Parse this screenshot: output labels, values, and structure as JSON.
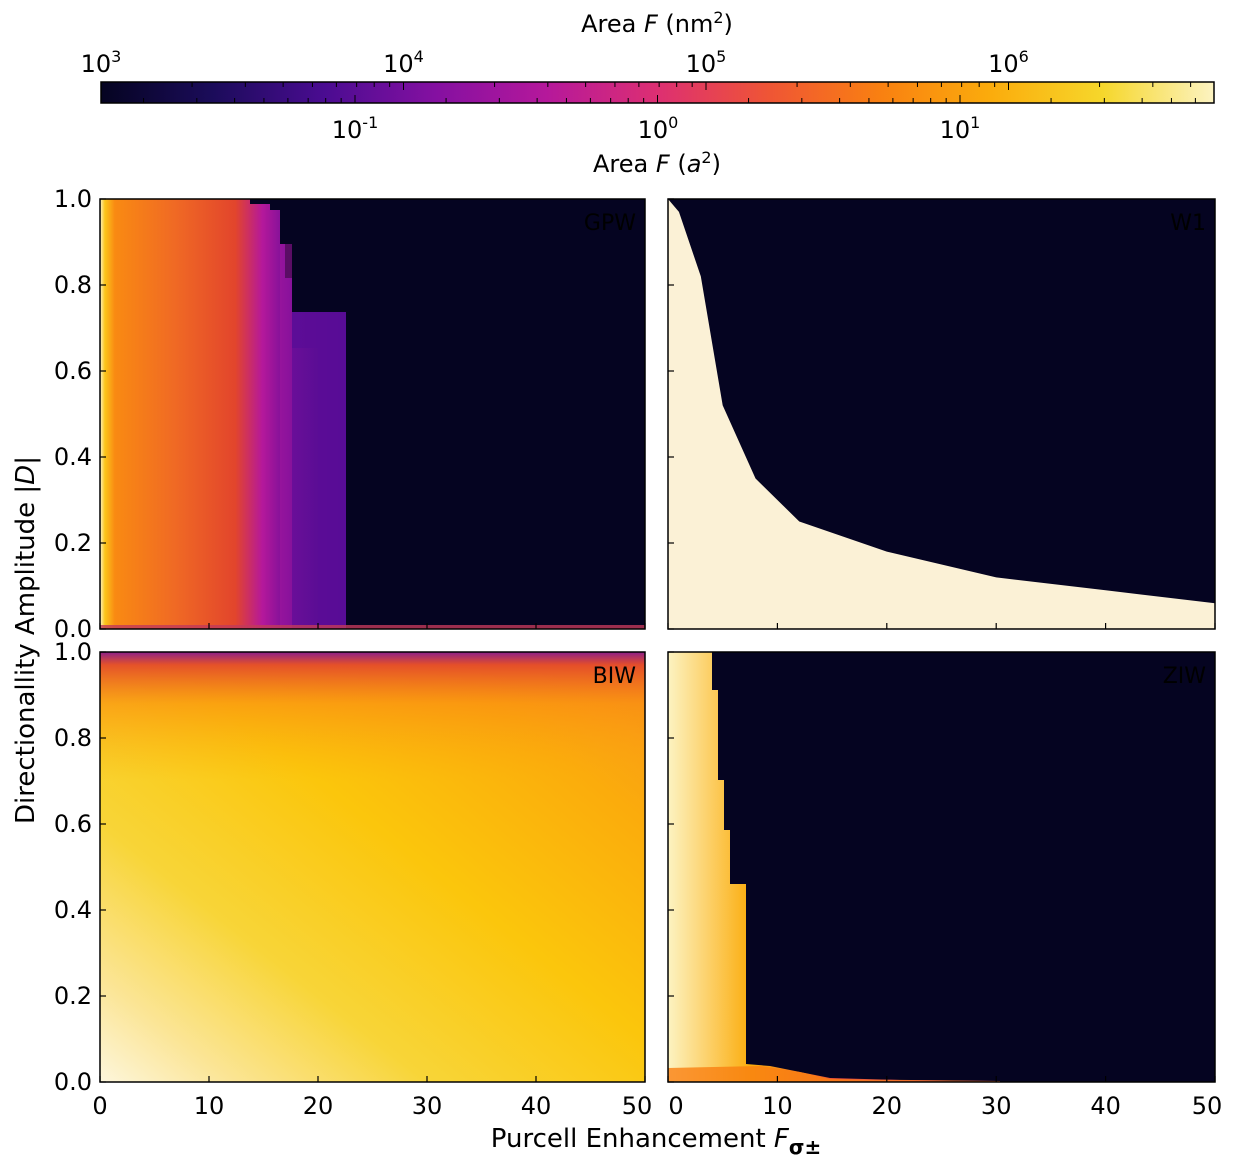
{
  "colorbar": {
    "top_label_prefix": "Area ",
    "top_label_var": "F",
    "top_label_unit_open": " (nm",
    "top_label_unit_sup": "2",
    "top_label_unit_close": ")",
    "bottom_label_prefix": "Area ",
    "bottom_label_var": "F",
    "bottom_label_unit_open": " (",
    "bottom_label_unit_var": "a",
    "bottom_label_unit_sup": "2",
    "bottom_label_unit_close": ")",
    "colormap": "inferno-like",
    "scale": "log",
    "top_ticks": [
      {
        "base": "10",
        "exp": "3"
      },
      {
        "base": "10",
        "exp": "4"
      },
      {
        "base": "10",
        "exp": "5"
      },
      {
        "base": "10",
        "exp": "6"
      }
    ],
    "bottom_ticks": [
      {
        "base": "10",
        "exp": "-1"
      },
      {
        "base": "10",
        "exp": "0"
      },
      {
        "base": "10",
        "exp": "1"
      }
    ]
  },
  "axes": {
    "ylabel_prefix": "Directionallity Amplitude |",
    "ylabel_var": "D",
    "ylabel_suffix": "|",
    "xlabel_prefix": "Purcell Enhancement ",
    "xlabel_var": "F",
    "xlabel_sub": "σ±",
    "x_ticks": [
      "0",
      "10",
      "20",
      "30",
      "40",
      "50"
    ],
    "y_ticks": [
      "0.0",
      "0.2",
      "0.4",
      "0.6",
      "0.8",
      "1.0"
    ]
  },
  "colors": {
    "background_dark": "#050421",
    "colorbar_stops": [
      "#050421",
      "#1b0c5a",
      "#4a0c91",
      "#8410a1",
      "#b5189b",
      "#dd2f72",
      "#ef5535",
      "#f98011",
      "#fbac0c",
      "#f6d72b",
      "#fcf3c2"
    ]
  },
  "chart_data": {
    "type": "heatmap",
    "xlim": [
      0,
      50
    ],
    "ylim": [
      0,
      1
    ],
    "panels": [
      {
        "name": "GPW",
        "label_color": "#e06a12",
        "description_region": [
          [
            0,
            0.0
          ],
          [
            22.5,
            0.72
          ]
        ]
      },
      {
        "name": "W1",
        "label_color": "#f4a20e",
        "boundary": [
          [
            1,
            1.0
          ],
          [
            3,
            0.85
          ],
          [
            5,
            0.55
          ],
          [
            8,
            0.38
          ],
          [
            12,
            0.28
          ],
          [
            20,
            0.21
          ],
          [
            30,
            0.15
          ],
          [
            40,
            0.12
          ],
          [
            50,
            0.09
          ]
        ]
      },
      {
        "name": "BIW",
        "label_color": "#2d9a5e"
      },
      {
        "name": "ZIW",
        "label_color": "#1f7fd0",
        "boundary": [
          [
            0,
            1.0
          ],
          [
            4,
            0.9
          ],
          [
            5,
            0.5
          ],
          [
            6.5,
            0.45
          ],
          [
            7,
            0.03
          ],
          [
            15,
            0.0
          ]
        ]
      }
    ]
  }
}
